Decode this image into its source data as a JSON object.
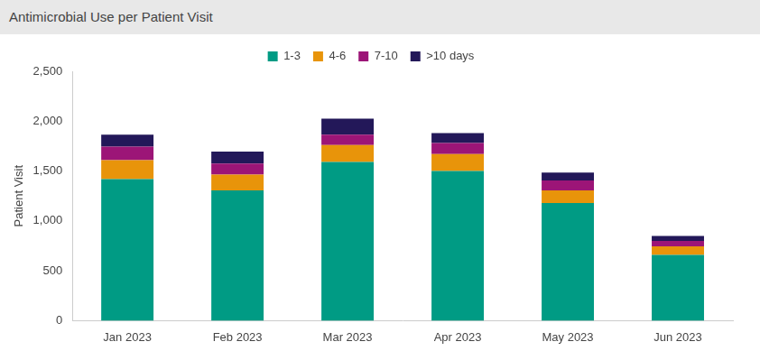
{
  "chart_data": {
    "type": "bar",
    "title": "Antimicrobial Use per Patient Visit",
    "y_label": "Patient Visit",
    "categories": [
      "Jan 2023",
      "Feb 2023",
      "Mar 2023",
      "Apr 2023",
      "May 2023",
      "Jun 2023"
    ],
    "series": [
      {
        "name": "1-3",
        "color": "#009b84",
        "values": [
          1420,
          1305,
          1590,
          1500,
          1180,
          660
        ]
      },
      {
        "name": "4-6",
        "color": "#e8940a",
        "values": [
          190,
          160,
          170,
          170,
          125,
          85
        ]
      },
      {
        "name": "7-10",
        "color": "#9c1577",
        "values": [
          135,
          110,
          105,
          110,
          100,
          55
        ]
      },
      {
        "name": ">10 days",
        "color": "#231859",
        "values": [
          120,
          120,
          160,
          100,
          80,
          50
        ]
      }
    ],
    "stacked": true,
    "legend": "top",
    "grid": false,
    "ylim": [
      0,
      2500
    ],
    "yticks": [
      0,
      500,
      {
        "value": 1000,
        "label": "1,000"
      },
      {
        "value": 1500,
        "label": "1,500"
      },
      {
        "value": 2000,
        "label": "2,000"
      },
      {
        "value": 2500,
        "label": "2,500"
      }
    ]
  }
}
